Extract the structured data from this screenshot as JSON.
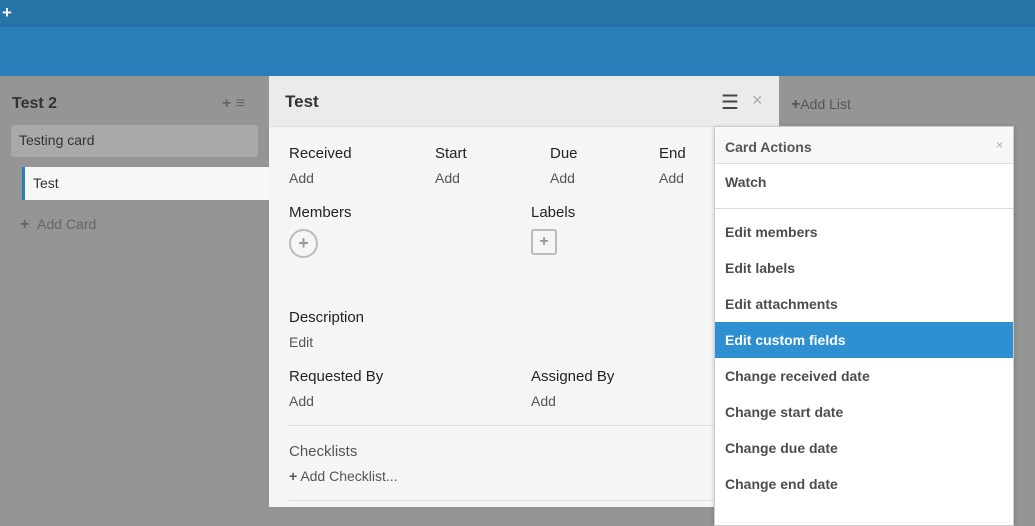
{
  "topbar": {
    "add_icon": "plus-icon"
  },
  "list": {
    "title": "Test 2",
    "cards": [
      "Testing card",
      "Test"
    ],
    "add_card": "Add Card"
  },
  "detail": {
    "title": "Test",
    "dates": [
      {
        "label": "Received",
        "value": "Add"
      },
      {
        "label": "Start",
        "value": "Add"
      },
      {
        "label": "Due",
        "value": "Add"
      },
      {
        "label": "End",
        "value": "Add"
      }
    ],
    "members": "Members",
    "labels": "Labels",
    "description": {
      "label": "Description",
      "value": "Edit"
    },
    "requested_by": {
      "label": "Requested By",
      "value": "Add"
    },
    "assigned_by": {
      "label": "Assigned By",
      "value": "Add"
    },
    "checklists": {
      "label": "Checklists",
      "add": "Add Checklist..."
    }
  },
  "add_list": "Add List",
  "card_actions": {
    "title": "Card Actions",
    "watch": "Watch",
    "items": [
      "Edit members",
      "Edit labels",
      "Edit attachments",
      "Edit custom fields",
      "Change received date",
      "Change start date",
      "Change due date",
      "Change end date"
    ],
    "active": "Edit custom fields",
    "active_color": "#2e90d1"
  }
}
